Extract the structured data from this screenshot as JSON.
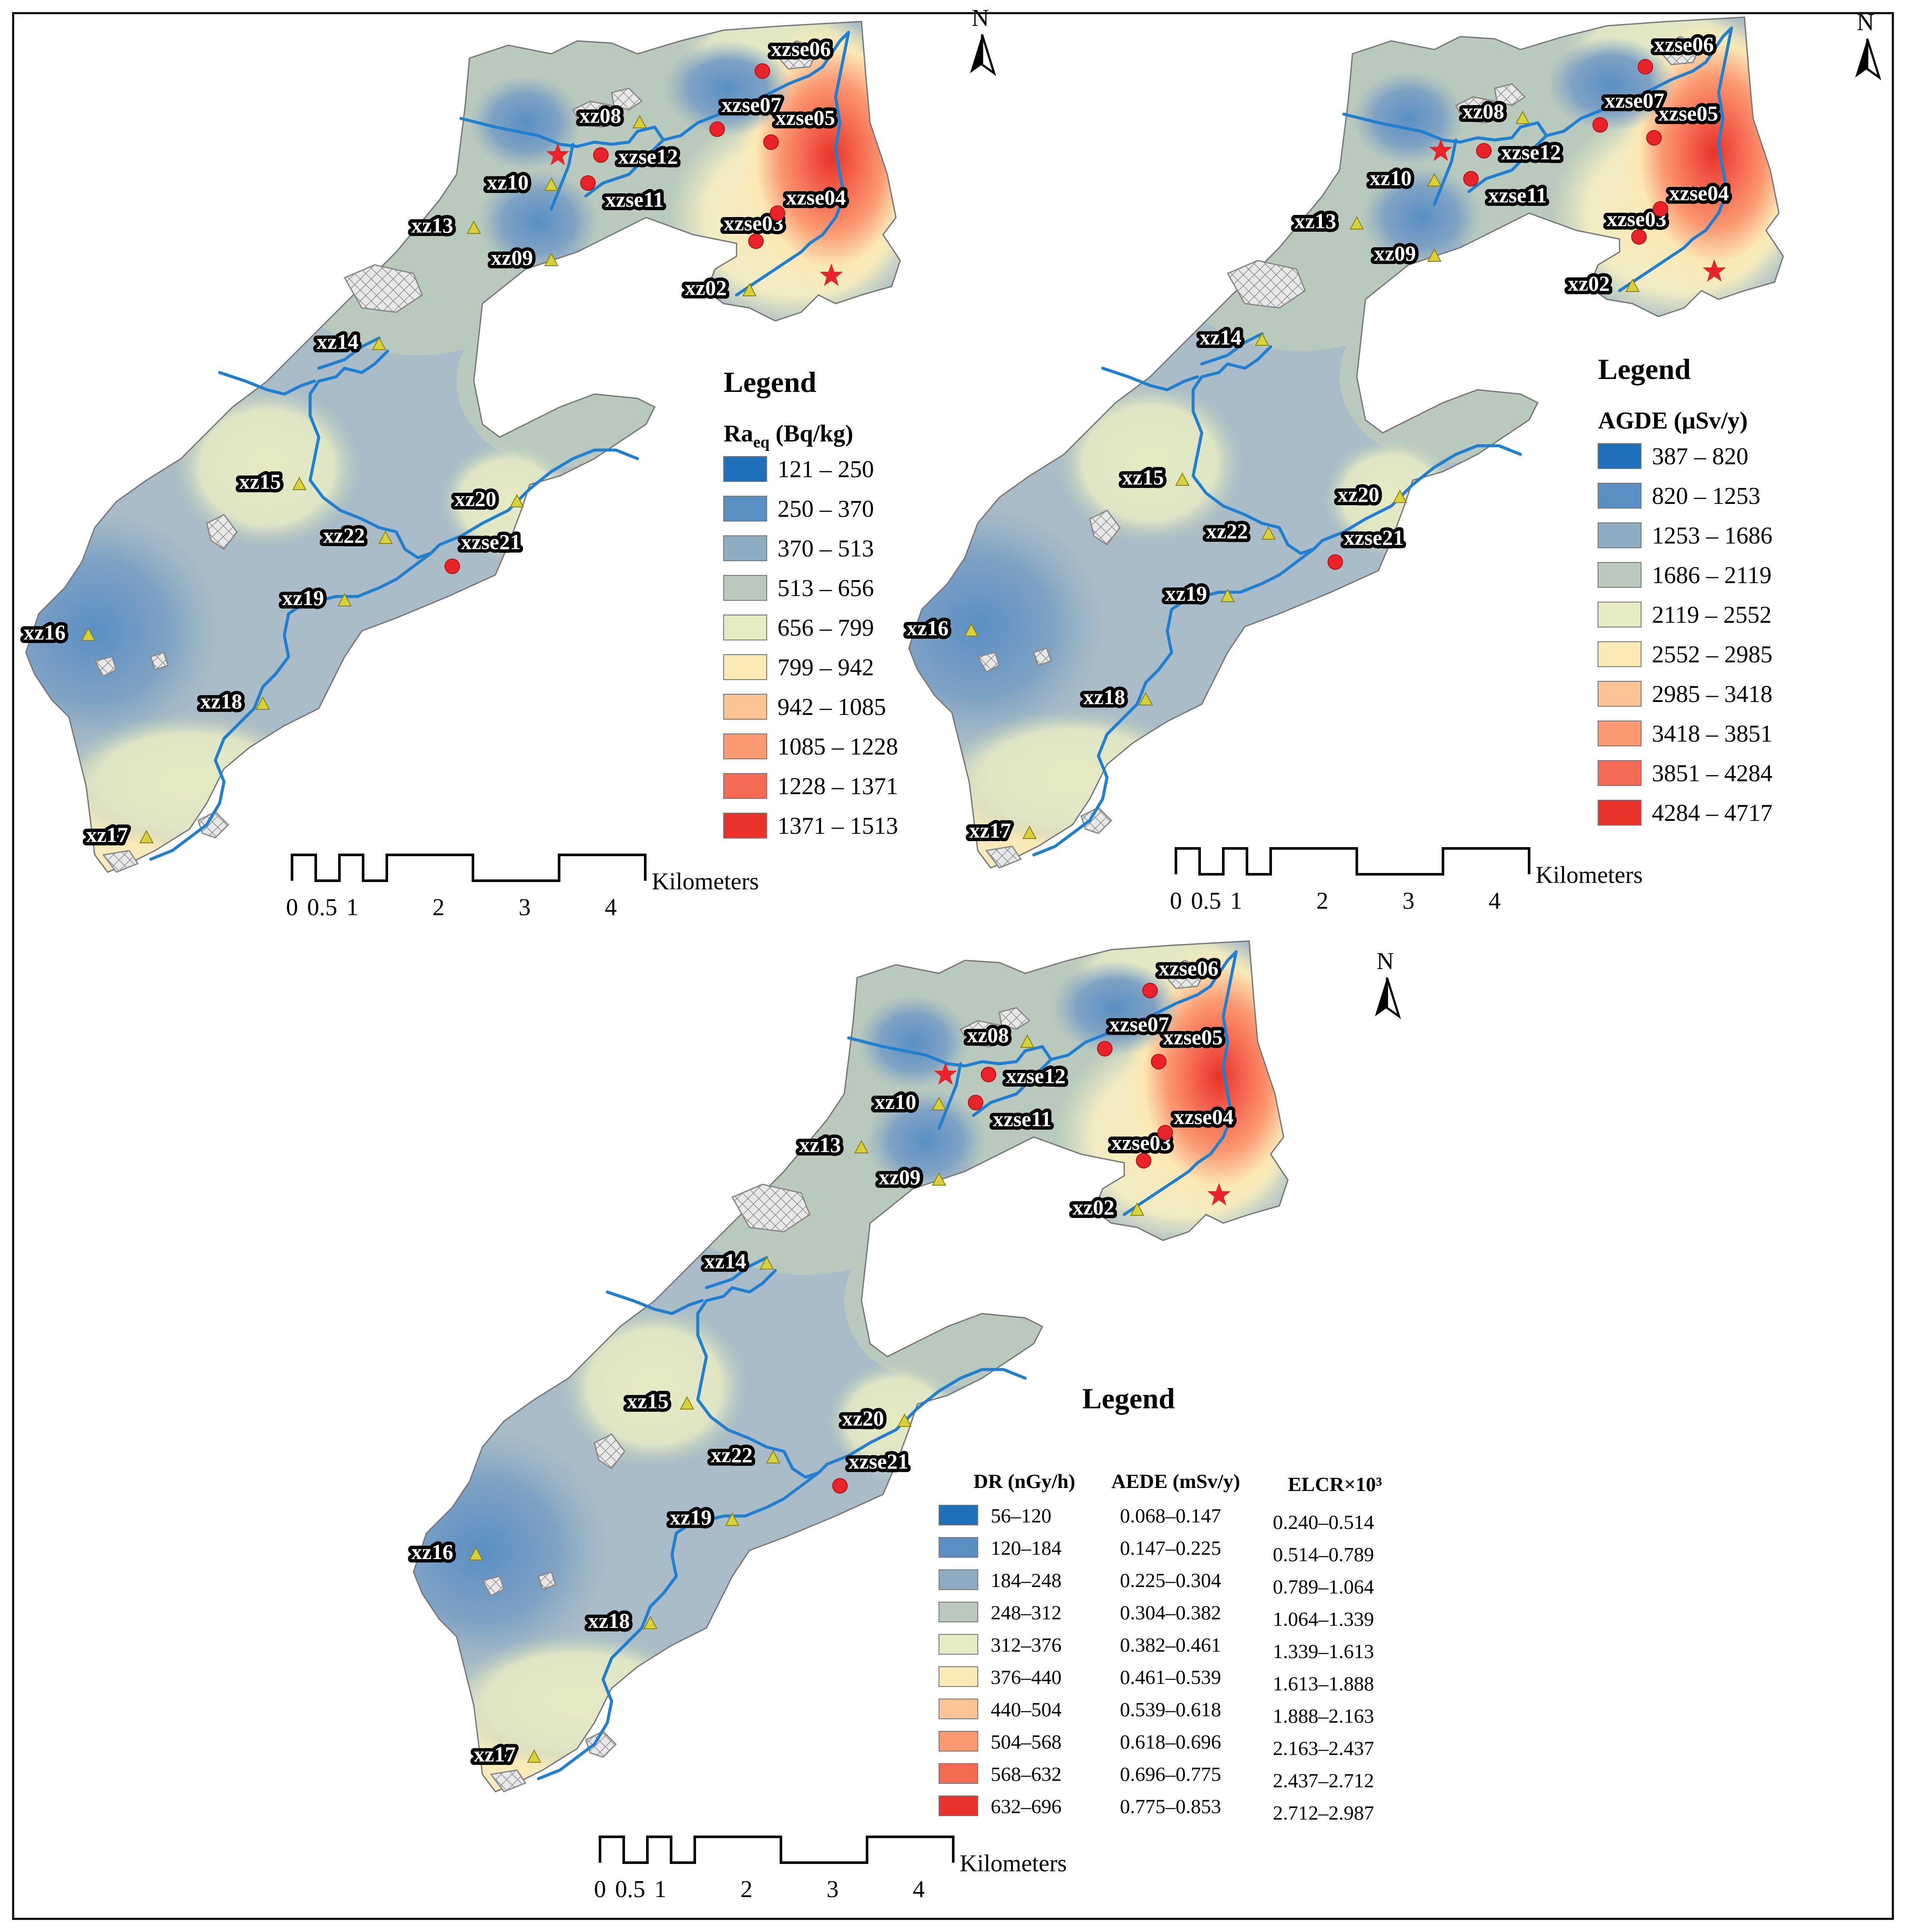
{
  "maps": [
    {
      "id": "map1",
      "legend_title": "Legend",
      "variable_main": "Ra",
      "variable_sub": "eq",
      "variable_unit": " (Bq/kg)",
      "classes": [
        "121 – 250",
        "250 – 370",
        "370 – 513",
        "513 – 656",
        "656 – 799",
        "799 – 942",
        "942 – 1085",
        "1085 – 1228",
        "1228 – 1371",
        "1371 – 1513"
      ]
    },
    {
      "id": "map2",
      "legend_title": "Legend",
      "variable": "AGDE (μSv/y)",
      "classes": [
        "387 – 820",
        "820 – 1253",
        "1253 – 1686",
        "1686 – 2119",
        "2119 – 2552",
        "2552 – 2985",
        "2985 – 3418",
        "3418 – 3851",
        "3851 – 4284",
        "4284 – 4717"
      ]
    },
    {
      "id": "map3",
      "legend_title": "Legend",
      "headers": [
        "DR (nGy/h)",
        "AEDE (mSv/y)",
        "ELCR×10³"
      ],
      "dr_classes": [
        "56–120",
        "120–184",
        "184–248",
        "248–312",
        "312–376",
        "376–440",
        "440–504",
        "504–568",
        "568–632",
        "632–696"
      ],
      "aede_classes": [
        "0.068–0.147",
        "0.147–0.225",
        "0.225–0.304",
        "0.304–0.382",
        "0.382–0.461",
        "0.461–0.539",
        "0.539–0.618",
        "0.618–0.696",
        "0.696–0.775",
        "0.775–0.853"
      ],
      "elcr_classes": [
        "0.240–0.514",
        "0.514–0.789",
        "0.789–1.064",
        "1.064–1.339",
        "1.339–1.613",
        "1.613–1.888",
        "1.888–2.163",
        "2.163–2.437",
        "2.437–2.712",
        "2.712–2.987"
      ]
    }
  ],
  "class_colors": [
    "#1f6fba",
    "#5a8fc4",
    "#8eacc2",
    "#b9c9bd",
    "#e6ebc3",
    "#fbe9b6",
    "#fcc495",
    "#fb9972",
    "#f56a52",
    "#e8322a"
  ],
  "north_label": "N",
  "scale": {
    "ticks": [
      "0",
      "0.5",
      "1",
      "2",
      "3",
      "4"
    ],
    "unit": "Kilometers"
  },
  "sample_sites": [
    {
      "name": "xz02",
      "type": "triangle"
    },
    {
      "name": "xz08",
      "type": "triangle"
    },
    {
      "name": "xz09",
      "type": "triangle"
    },
    {
      "name": "xz10",
      "type": "triangle"
    },
    {
      "name": "xz13",
      "type": "triangle"
    },
    {
      "name": "xz14",
      "type": "triangle"
    },
    {
      "name": "xz15",
      "type": "triangle"
    },
    {
      "name": "xz16",
      "type": "triangle"
    },
    {
      "name": "xz17",
      "type": "triangle"
    },
    {
      "name": "xz18",
      "type": "triangle"
    },
    {
      "name": "xz19",
      "type": "triangle"
    },
    {
      "name": "xz20",
      "type": "triangle"
    },
    {
      "name": "xz22",
      "type": "triangle"
    },
    {
      "name": "xzse03",
      "type": "circle"
    },
    {
      "name": "xzse04",
      "type": "circle"
    },
    {
      "name": "xzse05",
      "type": "circle"
    },
    {
      "name": "xzse06",
      "type": "circle"
    },
    {
      "name": "xzse07",
      "type": "circle"
    },
    {
      "name": "xzse11",
      "type": "circle"
    },
    {
      "name": "xzse12",
      "type": "circle"
    },
    {
      "name": "xzse21",
      "type": "circle"
    }
  ],
  "symbol_colors": {
    "triangle": "#d8d23a",
    "circle": "#e8232a",
    "star": "#e8232a"
  }
}
